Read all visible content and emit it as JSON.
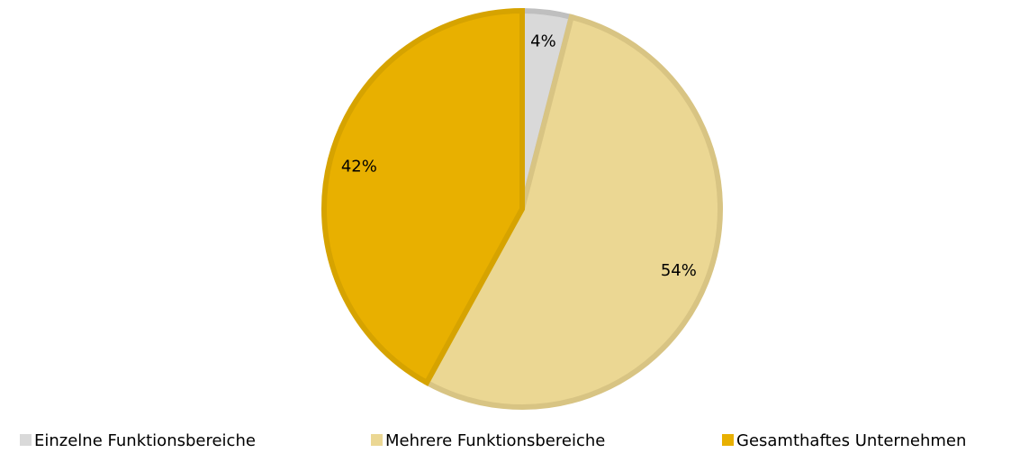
{
  "chart_data": {
    "type": "pie",
    "categories": [
      "Einzelne Funktionsbereiche",
      "Mehrere Funktionsbereiche",
      "Gesamthaftes Unternehmen"
    ],
    "values": [
      4,
      54,
      42
    ],
    "value_labels": [
      "4%",
      "54%",
      "42%"
    ],
    "colors": [
      "#d9d9d9",
      "#ebd793",
      "#e8b000"
    ],
    "edge_colors": [
      "#bfbfbf",
      "#d8c483",
      "#d6a300"
    ],
    "legend": "bottom"
  }
}
